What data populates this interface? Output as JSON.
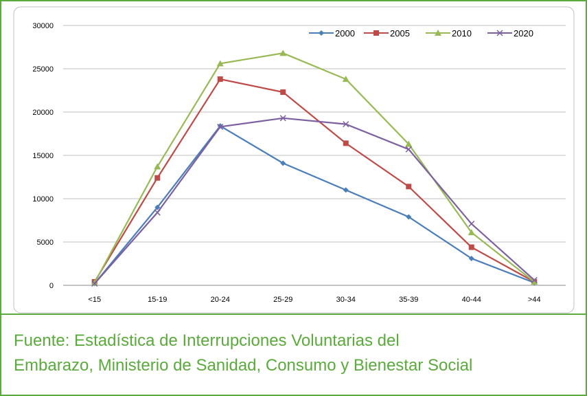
{
  "chart_data": {
    "type": "line",
    "categories": [
      "<15",
      "15-19",
      "20-24",
      "25-29",
      "30-34",
      "35-39",
      "40-44",
      ">44"
    ],
    "series": [
      {
        "name": "2000",
        "color": "#4a7ebb",
        "marker": "diamond",
        "values": [
          200,
          9000,
          18400,
          14100,
          11000,
          7900,
          3100,
          300
        ]
      },
      {
        "name": "2005",
        "color": "#be4b48",
        "marker": "square",
        "values": [
          400,
          12400,
          23800,
          22300,
          16400,
          11400,
          4400,
          400
        ]
      },
      {
        "name": "2010",
        "color": "#98b954",
        "marker": "triangle",
        "values": [
          300,
          13700,
          25600,
          26800,
          23800,
          16300,
          6100,
          400
        ]
      },
      {
        "name": "2020",
        "color": "#7d60a0",
        "marker": "x",
        "values": [
          200,
          8400,
          18300,
          19300,
          18600,
          15700,
          7100,
          600
        ]
      }
    ],
    "ylim": [
      0,
      30000
    ],
    "yticks": [
      0,
      5000,
      10000,
      15000,
      20000,
      25000,
      30000
    ],
    "grid": true,
    "legend": "top-right"
  },
  "footer": {
    "lines": [
      "Fuente: Estadística de Interrupciones Voluntarias del",
      "Embarazo, Ministerio de Sanidad, Consumo y Bienestar Social"
    ]
  }
}
